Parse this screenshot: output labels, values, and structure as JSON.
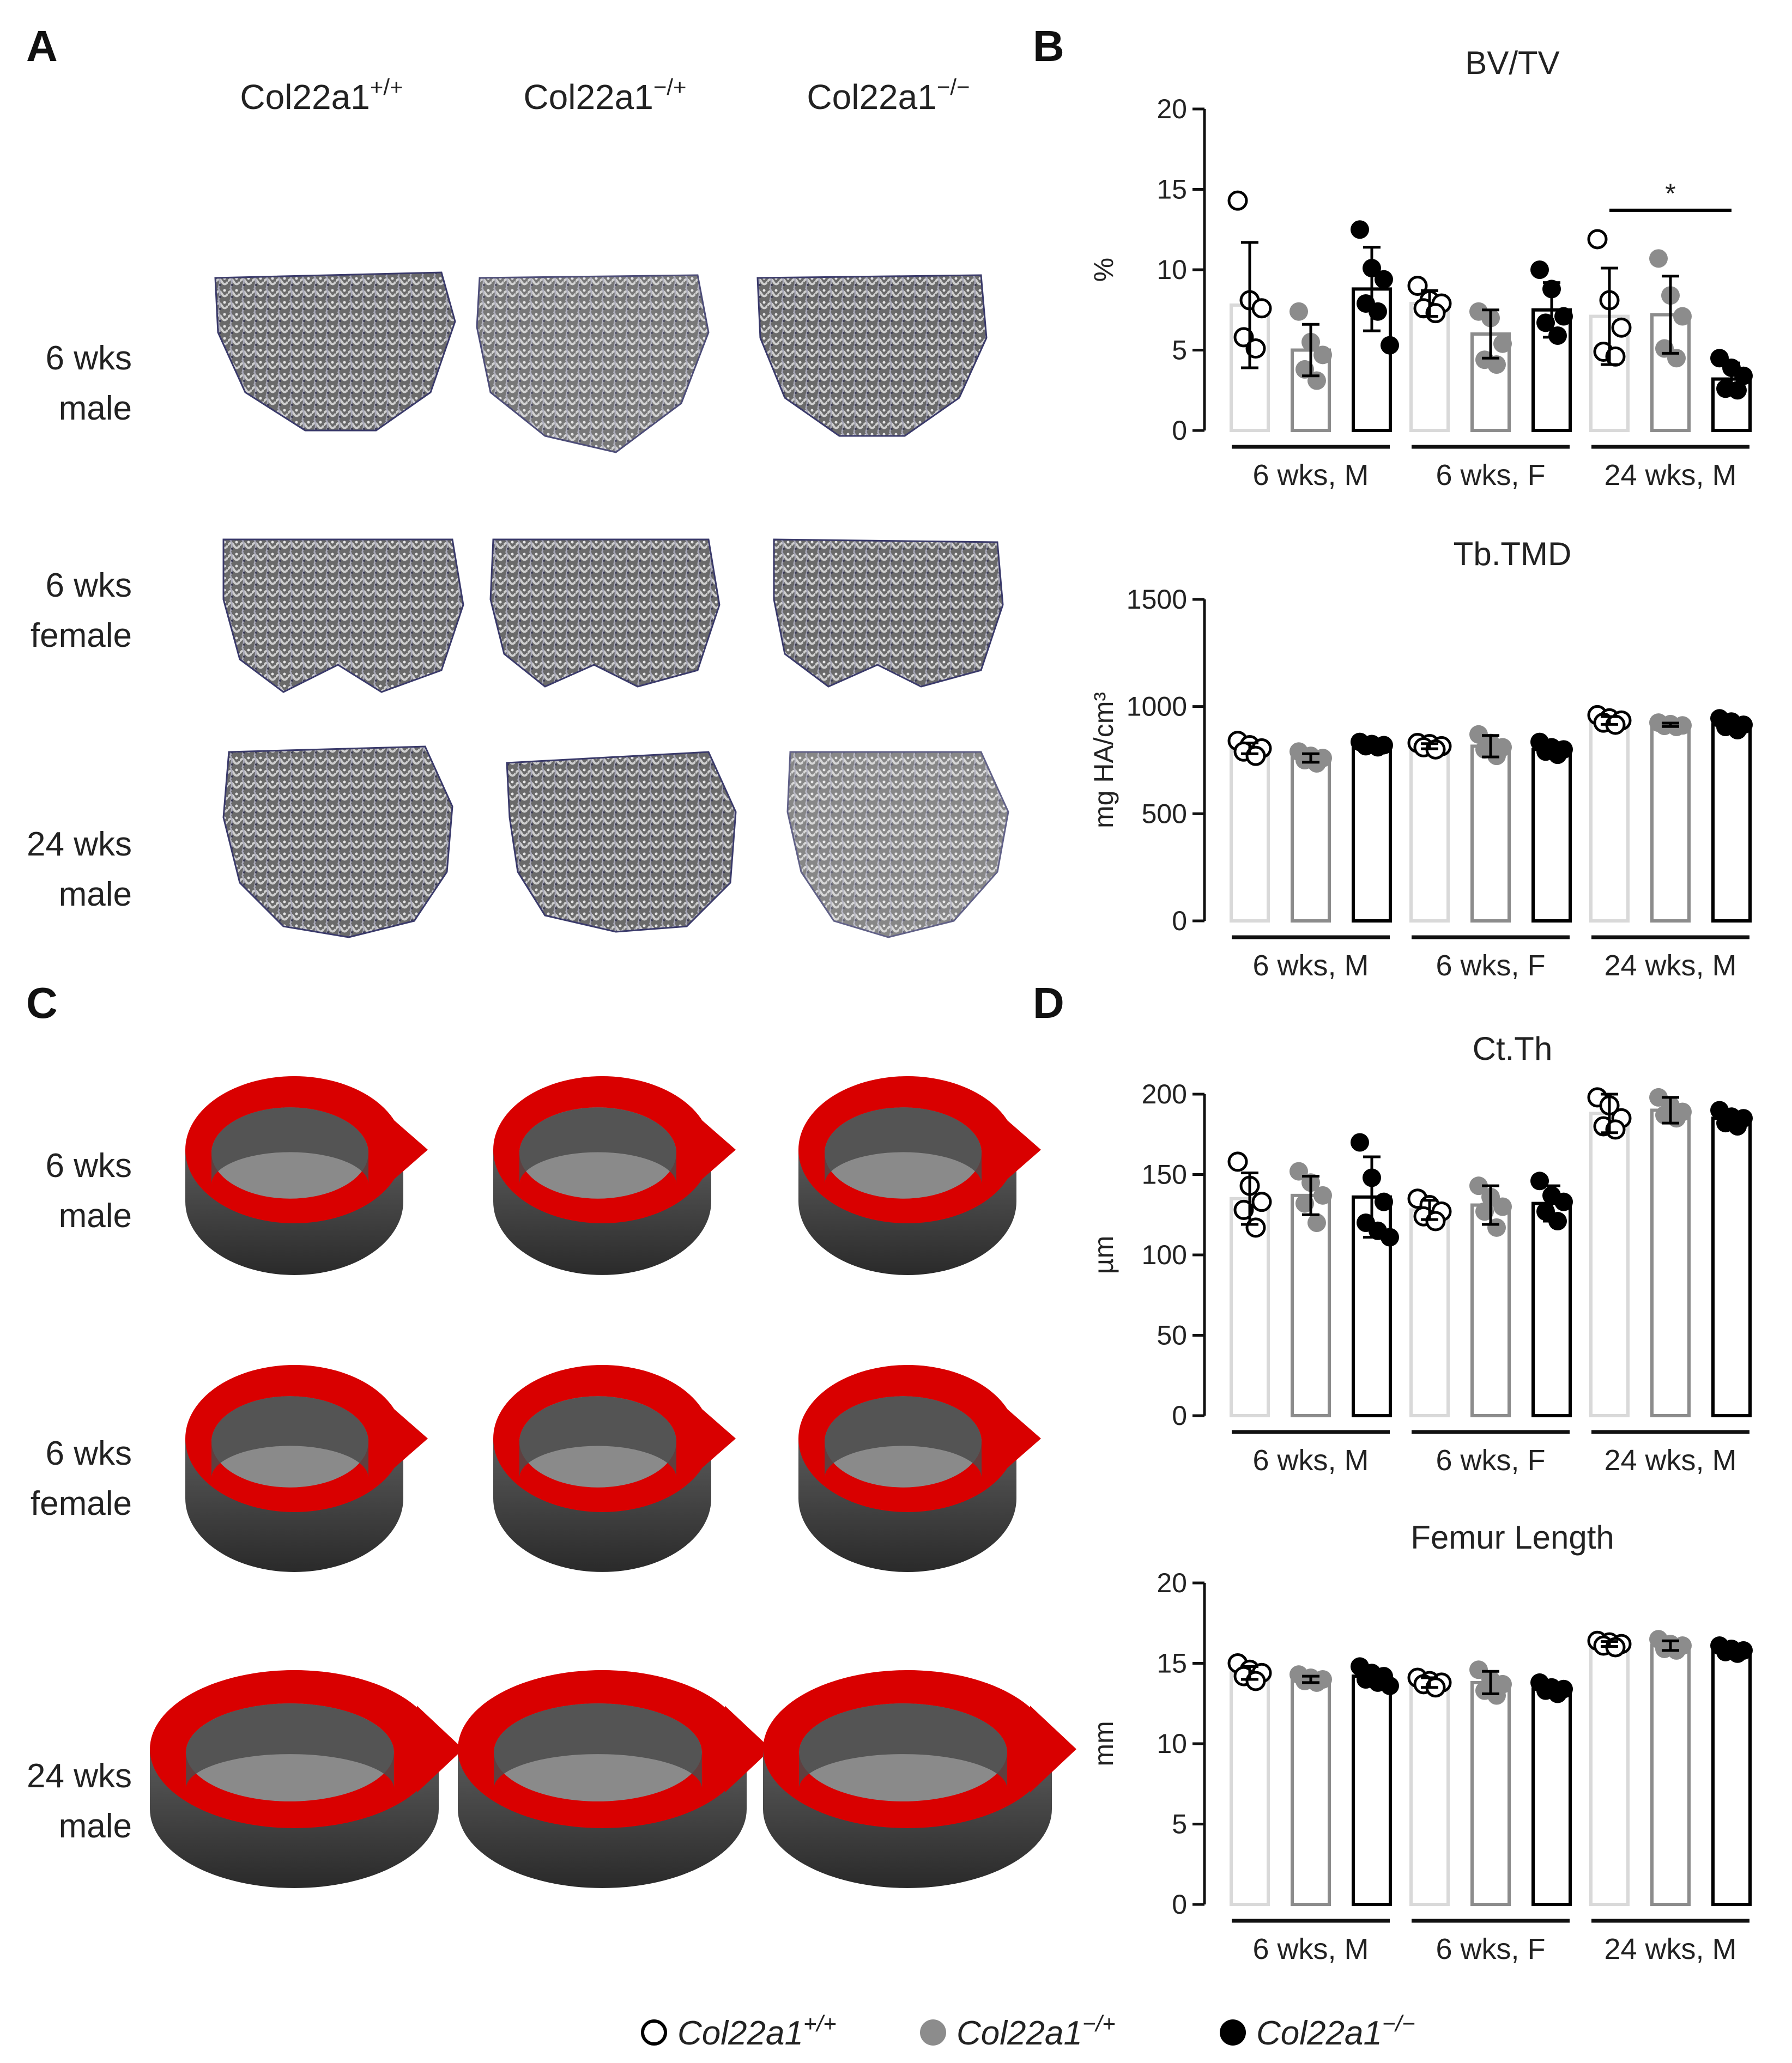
{
  "panel_labels": [
    "A",
    "B",
    "C",
    "D"
  ],
  "genotypes": [
    "Col22a1+/+",
    "Col22a1−/+",
    "Col22a1−/−"
  ],
  "genotype_parts": [
    {
      "base": "Col22a1",
      "sup": "+/+"
    },
    {
      "base": "Col22a1",
      "sup": "−/+"
    },
    {
      "base": "Col22a1",
      "sup": "−/−"
    }
  ],
  "row_labels": [
    {
      "line1": "6 wks",
      "line2": "male"
    },
    {
      "line1": "6 wks",
      "line2": "female"
    },
    {
      "line1": "24 wks",
      "line2": "male"
    }
  ],
  "colors": {
    "wt": "#d9d9d9",
    "het": "#8c8c8c",
    "ko": "#000000",
    "cortex": "#d90000",
    "bone": "#6e6e6e"
  },
  "legend": [
    {
      "label": "Col22a1",
      "sup": "+/+",
      "marker": "open-circle"
    },
    {
      "label": "Col22a1",
      "sup": "−/+",
      "marker": "gray-circle"
    },
    {
      "label": "Col22a1",
      "sup": "−/−",
      "marker": "black-circle"
    }
  ],
  "chart_data": [
    {
      "type": "bar",
      "title": "BV/TV",
      "ylabel": "%",
      "ylim": [
        0,
        20
      ],
      "yticks": [
        0,
        5,
        10,
        15,
        20
      ],
      "groups": [
        "6 wks, M",
        "6 wks, F",
        "24 wks, M"
      ],
      "series": [
        {
          "name": "Col22a1+/+",
          "means": [
            7.8,
            7.9,
            7.1
          ],
          "sd": [
            3.9,
            0.8,
            3.0
          ],
          "points": [
            [
              14.3,
              8.1,
              7.6,
              5.8,
              5.1
            ],
            [
              9.0,
              8.1,
              7.9,
              7.6,
              7.3
            ],
            [
              11.9,
              8.1,
              6.4,
              4.9,
              4.6
            ]
          ]
        },
        {
          "name": "Col22a1−/+",
          "means": [
            5.0,
            6.0,
            7.2
          ],
          "sd": [
            1.6,
            1.5,
            2.4
          ],
          "points": [
            [
              7.4,
              5.5,
              4.7,
              3.8,
              3.1
            ],
            [
              7.4,
              7.0,
              5.4,
              4.4,
              4.1
            ],
            [
              10.7,
              8.4,
              7.1,
              5.1,
              4.5
            ]
          ]
        },
        {
          "name": "Col22a1−/−",
          "means": [
            8.8,
            7.5,
            3.2
          ],
          "sd": [
            2.6,
            1.7,
            1.0
          ],
          "points": [
            [
              12.5,
              10.1,
              9.4,
              7.9,
              7.4,
              5.3
            ],
            [
              10.0,
              8.8,
              7.1,
              6.7,
              5.9
            ],
            [
              4.5,
              3.9,
              3.4,
              2.6,
              2.5
            ]
          ]
        }
      ],
      "significance": [
        {
          "group": "24 wks, M",
          "from": 0,
          "to": 2,
          "label": "*",
          "y": 13.7
        }
      ]
    },
    {
      "type": "bar",
      "title": "Tb.TMD",
      "ylabel": "mg HA/cm³",
      "ylim": [
        0,
        1500
      ],
      "yticks": [
        0,
        500,
        1000,
        1500
      ],
      "groups": [
        "6 wks, M",
        "6 wks, F",
        "24 wks, M"
      ],
      "series": [
        {
          "name": "Col22a1+/+",
          "means": [
            805,
            815,
            935
          ],
          "sd": [
            25,
            12,
            18
          ],
          "points": [
            [
              840,
              820,
              805,
              790,
              770
            ],
            [
              830,
              825,
              815,
              810,
              800
            ],
            [
              960,
              945,
              935,
              925,
              915
            ]
          ]
        },
        {
          "name": "Col22a1−/+",
          "means": [
            760,
            815,
            915
          ],
          "sd": [
            20,
            50,
            8
          ],
          "points": [
            [
              790,
              770,
              760,
              750,
              735
            ],
            [
              870,
              830,
              810,
              800,
              770
            ],
            [
              925,
              918,
              912,
              910,
              905
            ]
          ]
        },
        {
          "name": "Col22a1−/−",
          "means": [
            820,
            800,
            915
          ],
          "sd": [
            10,
            18,
            25
          ],
          "points": [
            [
              835,
              825,
              820,
              815,
              810
            ],
            [
              835,
              810,
              800,
              790,
              775
            ],
            [
              945,
              930,
              915,
              905,
              890
            ]
          ]
        }
      ]
    },
    {
      "type": "bar",
      "title": "Ct.Th",
      "ylabel": "µm",
      "ylim": [
        0,
        200
      ],
      "yticks": [
        0,
        50,
        100,
        150,
        200
      ],
      "groups": [
        "6 wks, M",
        "6 wks, F",
        "24 wks, M"
      ],
      "series": [
        {
          "name": "Col22a1+/+",
          "means": [
            135,
            128,
            188
          ],
          "sd": [
            16,
            6,
            12
          ],
          "points": [
            [
              158,
              143,
              133,
              128,
              117
            ],
            [
              135,
              131,
              127,
              124,
              121
            ],
            [
              198,
              193,
              185,
              180,
              178
            ]
          ]
        },
        {
          "name": "Col22a1−/+",
          "means": [
            137,
            131,
            190
          ],
          "sd": [
            12,
            12,
            8
          ],
          "points": [
            [
              152,
              145,
              137,
              132,
              120
            ],
            [
              143,
              136,
              130,
              127,
              117
            ],
            [
              198,
              193,
              189,
              187,
              185
            ]
          ]
        },
        {
          "name": "Col22a1−/−",
          "means": [
            136,
            132,
            185
          ],
          "sd": [
            25,
            11,
            4
          ],
          "points": [
            [
              170,
              148,
              133,
              120,
              115,
              111
            ],
            [
              146,
              137,
              133,
              127,
              121
            ],
            [
              190,
              186,
              185,
              182,
              180
            ]
          ]
        }
      ]
    },
    {
      "type": "bar",
      "title": "Femur Length",
      "ylabel": "mm",
      "ylim": [
        0,
        20
      ],
      "yticks": [
        0,
        5,
        10,
        15,
        20
      ],
      "groups": [
        "6 wks, M",
        "6 wks, F",
        "24 wks, M"
      ],
      "series": [
        {
          "name": "Col22a1+/+",
          "means": [
            14.4,
            13.8,
            16.2
          ],
          "sd": [
            0.4,
            0.3,
            0.15
          ],
          "points": [
            [
              15.0,
              14.6,
              14.4,
              14.2,
              13.9
            ],
            [
              14.1,
              13.9,
              13.8,
              13.7,
              13.5
            ],
            [
              16.4,
              16.3,
              16.2,
              16.1,
              16.0
            ]
          ]
        },
        {
          "name": "Col22a1−/+",
          "means": [
            14.0,
            13.8,
            16.1
          ],
          "sd": [
            0.2,
            0.7,
            0.3
          ],
          "points": [
            [
              14.3,
              14.1,
              14.0,
              13.9,
              13.8
            ],
            [
              14.6,
              14.0,
              13.7,
              13.3,
              13.0
            ],
            [
              16.5,
              16.2,
              16.1,
              15.9,
              15.8
            ]
          ]
        },
        {
          "name": "Col22a1−/−",
          "means": [
            14.2,
            13.4,
            15.8
          ],
          "sd": [
            0.4,
            0.3,
            0.2
          ],
          "points": [
            [
              14.8,
              14.4,
              14.2,
              14.0,
              13.8,
              13.6
            ],
            [
              13.8,
              13.5,
              13.4,
              13.3,
              13.1
            ],
            [
              16.1,
              15.9,
              15.8,
              15.7,
              15.6
            ]
          ]
        }
      ]
    }
  ]
}
